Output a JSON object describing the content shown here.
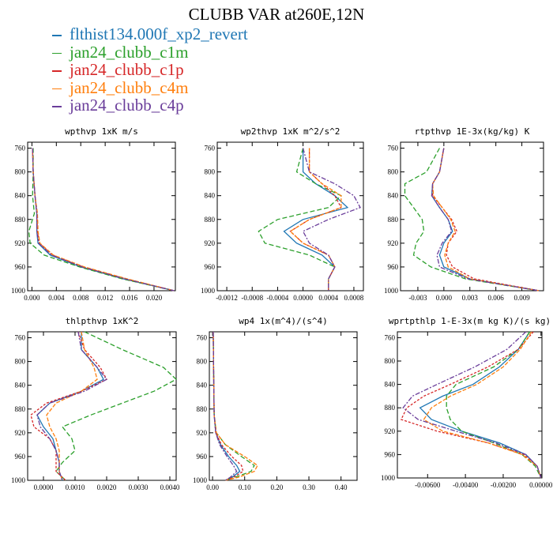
{
  "title": "CLUBB VAR at260E,12N",
  "legend": [
    {
      "name": "flthist134.000f_xp2_revert",
      "color": "#1f77b4"
    },
    {
      "name": "jan24_clubb_c1m",
      "color": "#2ca02c"
    },
    {
      "name": "jan24_clubb_c1p",
      "color": "#d62728"
    },
    {
      "name": "jan24_clubb_c4m",
      "color": "#ff7f0e"
    },
    {
      "name": "jan24_clubb_c4p",
      "color": "#6a3d9a"
    }
  ],
  "chart_data": [
    {
      "type": "line",
      "title": "wpthvp  1xK m/s",
      "xlim": [
        -0.0007,
        0.0235
      ],
      "ylim": [
        1000,
        750
      ],
      "xticks": [
        "0.000",
        "0.004",
        "0.008",
        "0.012",
        "0.016",
        "0.020"
      ],
      "xtick_values": [
        0,
        0.004,
        0.008,
        0.012,
        0.016,
        0.02
      ],
      "yticks": [
        760,
        800,
        840,
        880,
        920,
        960,
        1000
      ],
      "levels": [
        760,
        800,
        840,
        870,
        900,
        920,
        940,
        960,
        980,
        1000
      ],
      "series": [
        {
          "name": "flthist134.000f_xp2_revert",
          "values": [
            0.0001,
            0.0002,
            0.0005,
            0.0008,
            0.0008,
            0.001,
            0.003,
            0.008,
            0.015,
            0.0233
          ]
        },
        {
          "name": "jan24_clubb_c1m",
          "values": [
            0.0002,
            0.0002,
            0.0001,
            0.0004,
            -0.0005,
            -0.0003,
            0.002,
            0.0078,
            0.0148,
            0.0233
          ]
        },
        {
          "name": "jan24_clubb_c1p",
          "values": [
            0.0001,
            0.0002,
            0.0005,
            0.0008,
            0.0009,
            0.0012,
            0.0034,
            0.0084,
            0.0154,
            0.0233
          ]
        },
        {
          "name": "jan24_clubb_c4m",
          "values": [
            0.0001,
            0.0002,
            0.0005,
            0.0009,
            0.001,
            0.0013,
            0.0035,
            0.0086,
            0.0156,
            0.0233
          ]
        },
        {
          "name": "jan24_clubb_c4p",
          "values": [
            0.0001,
            0.0002,
            0.0005,
            0.0008,
            0.0008,
            0.0011,
            0.0032,
            0.0082,
            0.0152,
            0.0233
          ]
        }
      ]
    },
    {
      "type": "line",
      "title": "wp2thvp  1xK m^2/s^2",
      "xlim": [
        -0.00135,
        0.00095
      ],
      "ylim": [
        1000,
        750
      ],
      "xticks": [
        "-0.0012",
        "-0.0008",
        "-0.0004",
        "0.0000",
        "0.0004",
        "0.0008"
      ],
      "xtick_values": [
        -0.0012,
        -0.0008,
        -0.0004,
        0,
        0.0004,
        0.0008
      ],
      "yticks": [
        760,
        800,
        840,
        880,
        920,
        960,
        1000
      ],
      "levels": [
        760,
        800,
        820,
        840,
        860,
        880,
        900,
        920,
        940,
        960,
        980,
        1000
      ],
      "series": [
        {
          "name": "flthist134.000f_xp2_revert",
          "values": [
            0.0,
            0.0,
            0.0002,
            0.0005,
            0.0007,
            0.0,
            -0.0003,
            -0.0001,
            0.0003,
            0.0005,
            0.0004,
            0.0004
          ]
        },
        {
          "name": "jan24_clubb_c1m",
          "values": [
            0.0,
            -0.0001,
            0.0002,
            0.0006,
            0.0004,
            -0.0004,
            -0.0007,
            -0.0006,
            0.0001,
            0.0005,
            0.0004,
            0.0004
          ]
        },
        {
          "name": "jan24_clubb_c1p",
          "values": [
            0.0001,
            0.0001,
            0.0003,
            0.0005,
            0.0006,
            0.0001,
            -0.0002,
            0.0,
            0.0004,
            0.0005,
            0.0004,
            0.0004
          ]
        },
        {
          "name": "jan24_clubb_c4m",
          "values": [
            0.0001,
            0.0001,
            0.0003,
            0.0006,
            0.0006,
            0.0001,
            -0.0002,
            0.0,
            0.0004,
            0.0005,
            0.0004,
            0.0004
          ]
        },
        {
          "name": "jan24_clubb_c4p",
          "values": [
            0.0,
            0.0001,
            0.0005,
            0.0008,
            0.0009,
            0.0004,
            0.0,
            0.0001,
            0.0004,
            0.0005,
            0.0004,
            0.0004
          ]
        }
      ]
    },
    {
      "type": "line",
      "title": "rtpthvp  1E-3x(kg/kg) K",
      "xlim": [
        -0.005,
        0.0115
      ],
      "ylim": [
        1000,
        750
      ],
      "xticks": [
        "-0.003",
        "0.000",
        "0.003",
        "0.006",
        "0.009"
      ],
      "xtick_values": [
        -0.003,
        0,
        0.003,
        0.006,
        0.009
      ],
      "yticks": [
        760,
        800,
        840,
        880,
        920,
        960,
        1000
      ],
      "levels": [
        760,
        800,
        820,
        840,
        860,
        880,
        900,
        920,
        940,
        960,
        980,
        1000
      ],
      "series": [
        {
          "name": "flthist134.000f_xp2_revert",
          "values": [
            0.0,
            -0.0005,
            -0.0013,
            -0.0014,
            -0.0005,
            0.0005,
            0.001,
            0.0,
            -0.0005,
            0.0,
            0.003,
            0.011
          ]
        },
        {
          "name": "jan24_clubb_c1m",
          "values": [
            -0.0005,
            -0.002,
            -0.0045,
            -0.0045,
            -0.0035,
            -0.0025,
            -0.0023,
            -0.0032,
            -0.0035,
            -0.0015,
            0.0025,
            0.011
          ]
        },
        {
          "name": "jan24_clubb_c1p",
          "values": [
            0.0,
            -0.0005,
            -0.0013,
            -0.0013,
            -0.0002,
            0.0009,
            0.0015,
            0.0005,
            0.0003,
            0.001,
            0.0035,
            0.011
          ]
        },
        {
          "name": "jan24_clubb_c4m",
          "values": [
            0.0,
            -0.0005,
            -0.0013,
            -0.0012,
            -0.0002,
            0.0008,
            0.0013,
            0.0005,
            0.0001,
            0.0005,
            0.003,
            0.011
          ]
        },
        {
          "name": "jan24_clubb_c4p",
          "values": [
            0.0,
            -0.0005,
            -0.0013,
            -0.0014,
            -0.0005,
            0.0005,
            0.0009,
            -0.0002,
            -0.0008,
            -0.0005,
            0.0028,
            0.011
          ]
        }
      ]
    },
    {
      "type": "line",
      "title": "thlpthvp  1xK^2",
      "xlim": [
        -0.0005,
        0.0042
      ],
      "ylim": [
        1000,
        750
      ],
      "xticks": [
        "0.0000",
        "0.0010",
        "0.0020",
        "0.0030",
        "0.0040"
      ],
      "xtick_values": [
        0,
        0.001,
        0.002,
        0.003,
        0.004
      ],
      "yticks": [
        760,
        800,
        840,
        880,
        920,
        960,
        1000
      ],
      "levels": [
        750,
        780,
        810,
        830,
        850,
        870,
        890,
        910,
        930,
        950,
        970,
        985,
        1000
      ],
      "series": [
        {
          "name": "flthist134.000f_xp2_revert",
          "values": [
            0.0012,
            0.0012,
            0.0017,
            0.0019,
            0.0012,
            0.0002,
            -0.0002,
            0.0,
            0.0003,
            0.0004,
            0.0005,
            0.0005,
            0.0006
          ]
        },
        {
          "name": "jan24_clubb_c1m",
          "values": [
            0.0013,
            0.0025,
            0.0038,
            0.0042,
            0.0035,
            0.0025,
            0.0015,
            0.0006,
            0.0009,
            0.001,
            0.0006,
            0.0004,
            0.0007
          ]
        },
        {
          "name": "jan24_clubb_c1p",
          "values": [
            0.0011,
            0.0013,
            0.0018,
            0.002,
            0.0012,
            0.0001,
            -0.0004,
            -0.0003,
            0.0002,
            0.0004,
            0.0004,
            0.0004,
            0.0007
          ]
        },
        {
          "name": "jan24_clubb_c4m",
          "values": [
            0.0012,
            0.0013,
            0.0016,
            0.0017,
            0.0012,
            0.0004,
            0.0001,
            0.0002,
            0.0004,
            0.0005,
            0.0005,
            0.0005,
            0.0006
          ]
        },
        {
          "name": "jan24_clubb_c4p",
          "values": [
            0.0011,
            0.0012,
            0.0017,
            0.002,
            0.0013,
            0.0002,
            -0.0002,
            -0.0001,
            0.0002,
            0.0004,
            0.0005,
            0.0005,
            0.0006
          ]
        }
      ]
    },
    {
      "type": "line",
      "title": "wp4  1x(m^4)/(s^4)",
      "xlim": [
        -0.01,
        0.45
      ],
      "ylim": [
        1000,
        750
      ],
      "xticks": [
        "0.00",
        "0.10",
        "0.20",
        "0.30",
        "0.40"
      ],
      "xtick_values": [
        0,
        0.1,
        0.2,
        0.3,
        0.4
      ],
      "yticks": [
        760,
        800,
        840,
        880,
        920,
        960,
        1000
      ],
      "levels": [
        750,
        800,
        850,
        890,
        920,
        940,
        960,
        975,
        985,
        995,
        1000
      ],
      "series": [
        {
          "name": "flthist134.000f_xp2_revert",
          "values": [
            0.002,
            0.003,
            0.004,
            0.005,
            0.01,
            0.025,
            0.05,
            0.075,
            0.085,
            0.06,
            0.04
          ]
        },
        {
          "name": "jan24_clubb_c1m",
          "values": [
            0.002,
            0.003,
            0.004,
            0.005,
            0.012,
            0.04,
            0.09,
            0.13,
            0.12,
            0.07,
            0.04
          ]
        },
        {
          "name": "jan24_clubb_c1p",
          "values": [
            0.002,
            0.003,
            0.004,
            0.005,
            0.01,
            0.028,
            0.06,
            0.09,
            0.095,
            0.065,
            0.04
          ]
        },
        {
          "name": "jan24_clubb_c4m",
          "values": [
            0.002,
            0.003,
            0.004,
            0.005,
            0.012,
            0.04,
            0.1,
            0.14,
            0.13,
            0.08,
            0.04
          ]
        },
        {
          "name": "jan24_clubb_c4p",
          "values": [
            0.002,
            0.003,
            0.004,
            0.005,
            0.01,
            0.022,
            0.045,
            0.065,
            0.075,
            0.055,
            0.04
          ]
        }
      ]
    },
    {
      "type": "line",
      "title": "wprtpthlp  1-E-3x(m kg K)/(s kg)",
      "xlim": [
        -0.0076,
        5e-05
      ],
      "ylim": [
        1000,
        750
      ],
      "xticks": [
        "-0.00600",
        "-0.00400",
        "-0.00200",
        "0.00000"
      ],
      "xtick_values": [
        -0.006,
        -0.004,
        -0.002,
        0
      ],
      "yticks": [
        760,
        800,
        840,
        880,
        920,
        960,
        1000
      ],
      "levels": [
        750,
        780,
        810,
        840,
        860,
        880,
        900,
        920,
        940,
        960,
        980,
        1000
      ],
      "series": [
        {
          "name": "flthist134.000f_xp2_revert",
          "values": [
            -0.0006,
            -0.0012,
            -0.0022,
            -0.0036,
            -0.0052,
            -0.0064,
            -0.0058,
            -0.0042,
            -0.0022,
            -0.0008,
            -0.0002,
            0.0
          ]
        },
        {
          "name": "jan24_clubb_c1m",
          "values": [
            -0.0006,
            -0.0012,
            -0.0025,
            -0.0045,
            -0.005,
            -0.005,
            -0.0048,
            -0.0042,
            -0.0025,
            -0.001,
            -0.0003,
            0.0
          ]
        },
        {
          "name": "jan24_clubb_c1p",
          "values": [
            -0.0004,
            -0.0012,
            -0.0028,
            -0.0048,
            -0.0062,
            -0.0071,
            -0.0074,
            -0.0055,
            -0.0028,
            -0.0009,
            -0.0002,
            0.0
          ]
        },
        {
          "name": "jan24_clubb_c4m",
          "values": [
            -0.0005,
            -0.0011,
            -0.002,
            -0.0034,
            -0.0048,
            -0.0058,
            -0.0062,
            -0.0052,
            -0.0028,
            -0.001,
            -0.0002,
            0.0
          ]
        },
        {
          "name": "jan24_clubb_c4p",
          "values": [
            -0.0008,
            -0.0018,
            -0.0035,
            -0.0055,
            -0.0068,
            -0.0073,
            -0.0065,
            -0.0045,
            -0.0024,
            -0.0008,
            -0.0002,
            0.0
          ]
        }
      ]
    }
  ]
}
